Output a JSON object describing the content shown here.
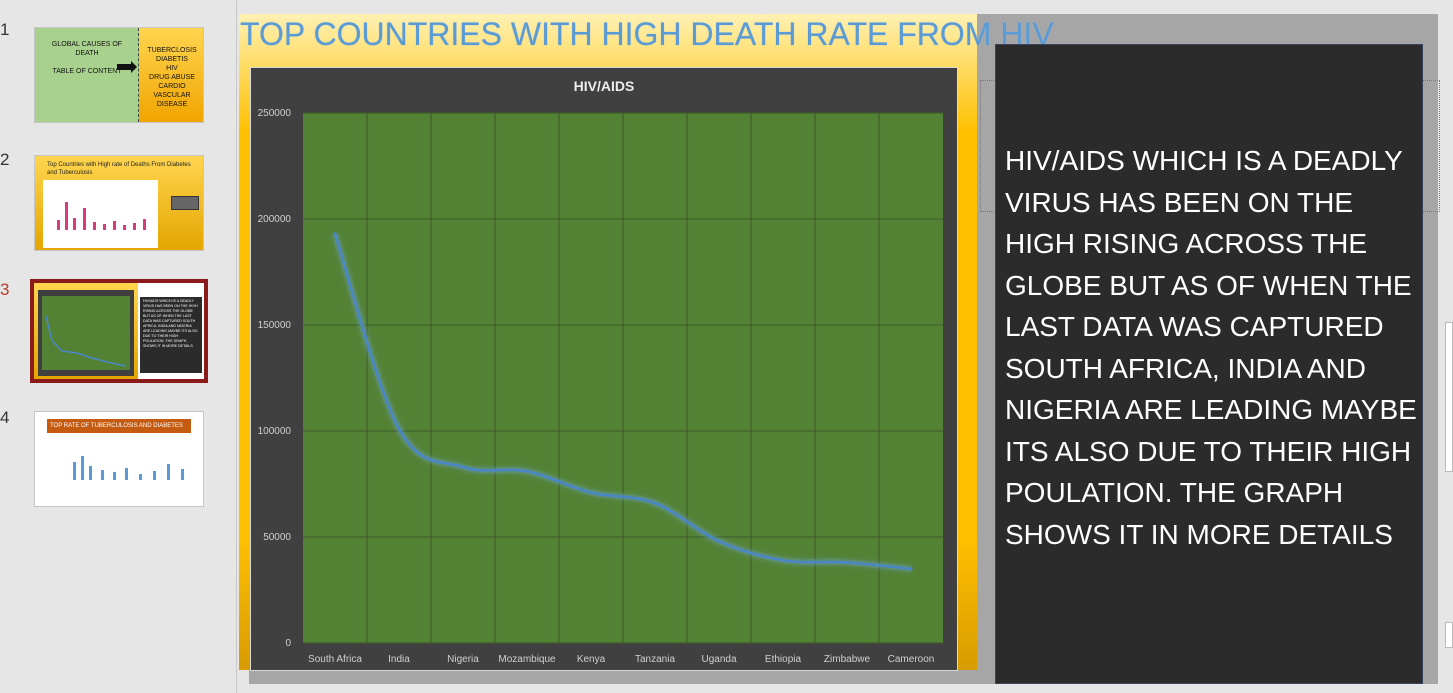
{
  "thumbnails": {
    "numbers": [
      "1",
      "2",
      "3",
      "4"
    ],
    "slide1": {
      "left_text": "GLOBAL CAUSES OF\nDEATH\n\nTABLE OF CONTENT",
      "right_text": "TUBERCLOSIS\nDIABETIS\nHIV\nDRUG ABUSE\nCARDIO VASCULAR\nDISEASE"
    },
    "slide2": {
      "title": "Top Countries with High rate of Deaths From Diabetes and Tuberculosis"
    },
    "slide3": {
      "text": "HIV/AIDS WHICH IS A DEADLY VIRUS HAS BEEN ON THE HIGH RISING ACROSS THE GLOBE BUT AS OF WHEN THE LAST DATA WAS CAPTURED SOUTH AFRICA, INDIA AND NIGERIA ARE LEADING MAYBE ITS ALSO DUE TO THEIR HIGH POULATION. THE GRAPH SHOWS IT IN MORE DETAILS"
    },
    "slide4": {
      "title": "TOP RATE OF TUBERCULOSIS AND DIABETES"
    }
  },
  "slide": {
    "title": "TOP COUNTRIES WITH HIGH DEATH RATE  FROM HIV",
    "text_box": "HIV/AIDS WHICH IS A DEADLY VIRUS HAS BEEN ON THE HIGH RISING ACROSS THE GLOBE BUT AS OF WHEN THE LAST DATA WAS CAPTURED SOUTH AFRICA, INDIA AND NIGERIA ARE LEADING MAYBE ITS ALSO DUE TO THEIR HIGH POULATION. THE GRAPH SHOWS IT IN MORE DETAILS"
  },
  "colors": {
    "accent_title": "#5b9bd5",
    "plot_bg": "#548235",
    "chart_bg": "#404040",
    "line": "#4a86c8",
    "active_slide_border": "#8b1a1a"
  },
  "chart_data": {
    "type": "line",
    "title": "HIV/AIDS",
    "categories": [
      "South Africa",
      "India",
      "Nigeria",
      "Mozambique",
      "Kenya",
      "Tanzania",
      "Uganda",
      "Ethiopia",
      "Zimbabwe",
      "Cameroon"
    ],
    "series": [
      {
        "values": [
          193000,
          101000,
          83000,
          81000,
          71000,
          66000,
          48000,
          39000,
          38000,
          35000
        ]
      }
    ],
    "yticks": [
      "0",
      "50000",
      "100000",
      "150000",
      "200000",
      "250000"
    ],
    "ylim": [
      0,
      250000
    ],
    "xlabel": "",
    "ylabel": "",
    "grid": true,
    "legend": "none"
  }
}
